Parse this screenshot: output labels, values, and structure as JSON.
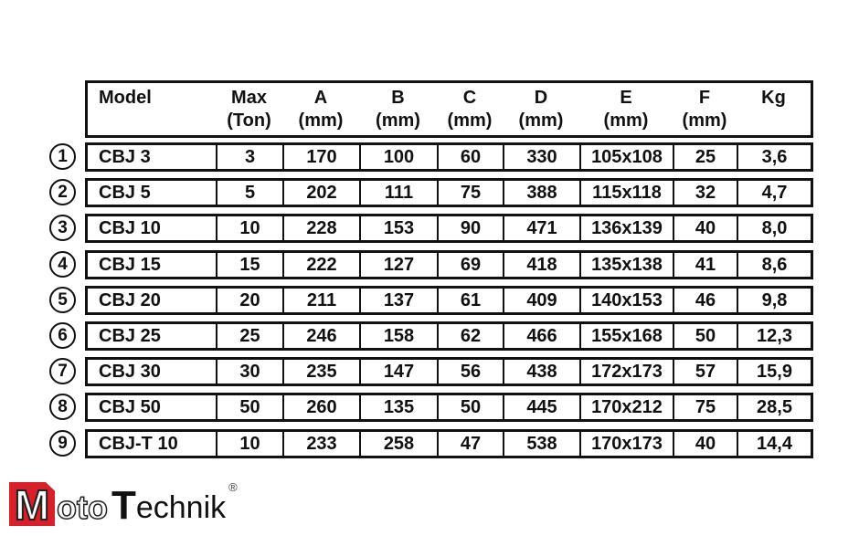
{
  "headers": [
    {
      "l1": "Model",
      "l2": ""
    },
    {
      "l1": "Max",
      "l2": "(Ton)"
    },
    {
      "l1": "A",
      "l2": "(mm)"
    },
    {
      "l1": "B",
      "l2": "(mm)"
    },
    {
      "l1": "C",
      "l2": "(mm)"
    },
    {
      "l1": "D",
      "l2": "(mm)"
    },
    {
      "l1": "E",
      "l2": "(mm)"
    },
    {
      "l1": "F",
      "l2": "(mm)"
    },
    {
      "l1": "Kg",
      "l2": ""
    }
  ],
  "rows": [
    {
      "n": "1",
      "cells": [
        "CBJ 3",
        "3",
        "170",
        "100",
        "60",
        "330",
        "105x108",
        "25",
        "3,6"
      ]
    },
    {
      "n": "2",
      "cells": [
        "CBJ 5",
        "5",
        "202",
        "111",
        "75",
        "388",
        "115x118",
        "32",
        "4,7"
      ]
    },
    {
      "n": "3",
      "cells": [
        "CBJ 10",
        "10",
        "228",
        "153",
        "90",
        "471",
        "136x139",
        "40",
        "8,0"
      ]
    },
    {
      "n": "4",
      "cells": [
        "CBJ 15",
        "15",
        "222",
        "127",
        "69",
        "418",
        "135x138",
        "41",
        "8,6"
      ]
    },
    {
      "n": "5",
      "cells": [
        "CBJ 20",
        "20",
        "211",
        "137",
        "61",
        "409",
        "140x153",
        "46",
        "9,8"
      ]
    },
    {
      "n": "6",
      "cells": [
        "CBJ 25",
        "25",
        "246",
        "158",
        "62",
        "466",
        "155x168",
        "50",
        "12,3"
      ]
    },
    {
      "n": "7",
      "cells": [
        "CBJ 30",
        "30",
        "235",
        "147",
        "56",
        "438",
        "172x173",
        "57",
        "15,9"
      ]
    },
    {
      "n": "8",
      "cells": [
        "CBJ 50",
        "50",
        "260",
        "135",
        "50",
        "445",
        "170x212",
        "75",
        "28,5"
      ]
    },
    {
      "n": "9",
      "cells": [
        "CBJ-T 10",
        "10",
        "233",
        "258",
        "47",
        "538",
        "170x173",
        "40",
        "14,4"
      ]
    }
  ],
  "logo": {
    "m": "M",
    "oto": "oto",
    "t": "T",
    "echnik": "echnik",
    "reg": "®",
    "brand_color": "#d8202a"
  }
}
